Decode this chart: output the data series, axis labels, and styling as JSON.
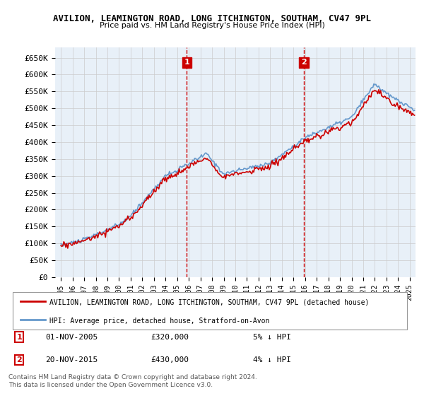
{
  "title": "AVILION, LEAMINGTON ROAD, LONG ITCHINGTON, SOUTHAM, CV47 9PL",
  "subtitle": "Price paid vs. HM Land Registry's House Price Index (HPI)",
  "legend_line1": "AVILION, LEAMINGTON ROAD, LONG ITCHINGTON, SOUTHAM, CV47 9PL (detached house)",
  "legend_line2": "HPI: Average price, detached house, Stratford-on-Avon",
  "annotation1_label": "1",
  "annotation1_date": "01-NOV-2005",
  "annotation1_price": "£320,000",
  "annotation1_hpi": "5% ↓ HPI",
  "annotation1_year": 2005.83,
  "annotation1_value": 320000,
  "annotation2_label": "2",
  "annotation2_date": "20-NOV-2015",
  "annotation2_price": "£430,000",
  "annotation2_hpi": "4% ↓ HPI",
  "annotation2_year": 2015.89,
  "annotation2_value": 430000,
  "red_line_color": "#cc0000",
  "blue_line_color": "#6699cc",
  "background_color": "#ffffff",
  "grid_color": "#cccccc",
  "annotation_box_color": "#cc0000",
  "footer_text": "Contains HM Land Registry data © Crown copyright and database right 2024.\nThis data is licensed under the Open Government Licence v3.0.",
  "ylim_min": 0,
  "ylim_max": 680000,
  "yticks": [
    0,
    50000,
    100000,
    150000,
    200000,
    250000,
    300000,
    350000,
    400000,
    450000,
    500000,
    550000,
    600000,
    650000
  ],
  "ytick_labels": [
    "£0",
    "£50K",
    "£100K",
    "£150K",
    "£200K",
    "£250K",
    "£300K",
    "£350K",
    "£400K",
    "£450K",
    "£500K",
    "£550K",
    "£600K",
    "£650K"
  ]
}
